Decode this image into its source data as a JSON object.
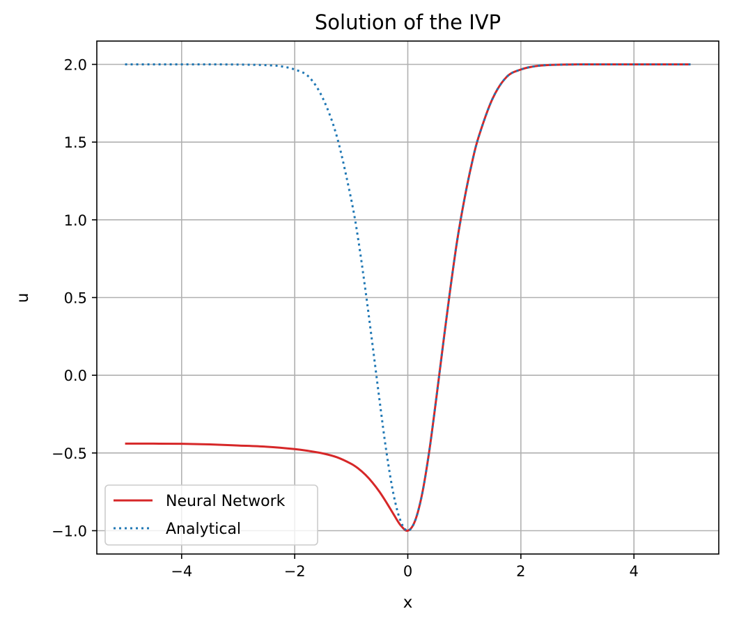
{
  "chart_data": {
    "type": "line",
    "title": "Solution of the IVP",
    "xlabel": "x",
    "ylabel": "u",
    "xlim": [
      -5.5,
      5.5
    ],
    "ylim": [
      -1.15,
      2.15
    ],
    "xticks": [
      -4,
      -2,
      0,
      2,
      4
    ],
    "yticks": [
      -1.0,
      -0.5,
      0.0,
      0.5,
      1.0,
      1.5,
      2.0
    ],
    "xtick_labels": [
      "−4",
      "−2",
      "0",
      "2",
      "4"
    ],
    "ytick_labels": [
      "−1.0",
      "−0.5",
      "0.0",
      "0.5",
      "1.0",
      "1.5",
      "2.0"
    ],
    "grid": true,
    "legend_position": "lower-left",
    "series": [
      {
        "name": "Neural Network",
        "color": "#d62728",
        "style": "solid",
        "x": [
          -5.0,
          -4.5,
          -4.0,
          -3.5,
          -3.0,
          -2.5,
          -2.0,
          -1.75,
          -1.5,
          -1.25,
          -1.0,
          -0.875,
          -0.75,
          -0.625,
          -0.5,
          -0.375,
          -0.25,
          -0.125,
          0.0,
          0.125,
          0.25,
          0.375,
          0.5,
          0.625,
          0.75,
          0.875,
          1.0,
          1.125,
          1.25,
          1.5,
          1.75,
          2.0,
          2.25,
          2.5,
          3.0,
          3.5,
          4.0,
          4.5,
          5.0
        ],
        "y": [
          -0.44,
          -0.44,
          -0.441,
          -0.445,
          -0.452,
          -0.46,
          -0.475,
          -0.487,
          -0.503,
          -0.528,
          -0.57,
          -0.6,
          -0.64,
          -0.69,
          -0.75,
          -0.82,
          -0.895,
          -0.966,
          -1.0,
          -0.94,
          -0.77,
          -0.5,
          -0.16,
          0.2,
          0.55,
          0.87,
          1.13,
          1.35,
          1.53,
          1.78,
          1.92,
          1.967,
          1.988,
          1.996,
          2.0,
          2.0,
          2.0,
          2.0,
          2.0
        ]
      },
      {
        "name": "Analytical",
        "color": "#1f77b4",
        "style": "dotted",
        "x": [
          -5.0,
          -4.5,
          -4.0,
          -3.5,
          -3.0,
          -2.5,
          -2.25,
          -2.0,
          -1.75,
          -1.5,
          -1.25,
          -1.0,
          -0.875,
          -0.75,
          -0.625,
          -0.5,
          -0.375,
          -0.25,
          -0.125,
          0.0,
          0.125,
          0.25,
          0.375,
          0.5,
          0.625,
          0.75,
          0.875,
          1.0,
          1.125,
          1.25,
          1.5,
          1.75,
          2.0,
          2.25,
          2.5,
          3.0,
          3.5,
          4.0,
          4.5,
          5.0
        ],
        "y": [
          2.0,
          2.0,
          2.0,
          2.0,
          1.999,
          1.995,
          1.988,
          1.967,
          1.92,
          1.78,
          1.53,
          1.13,
          0.87,
          0.55,
          0.2,
          -0.16,
          -0.5,
          -0.77,
          -0.94,
          -1.0,
          -0.94,
          -0.77,
          -0.5,
          -0.16,
          0.2,
          0.55,
          0.87,
          1.13,
          1.35,
          1.53,
          1.78,
          1.92,
          1.967,
          1.988,
          1.996,
          2.0,
          2.0,
          2.0,
          2.0,
          2.0
        ]
      }
    ]
  }
}
